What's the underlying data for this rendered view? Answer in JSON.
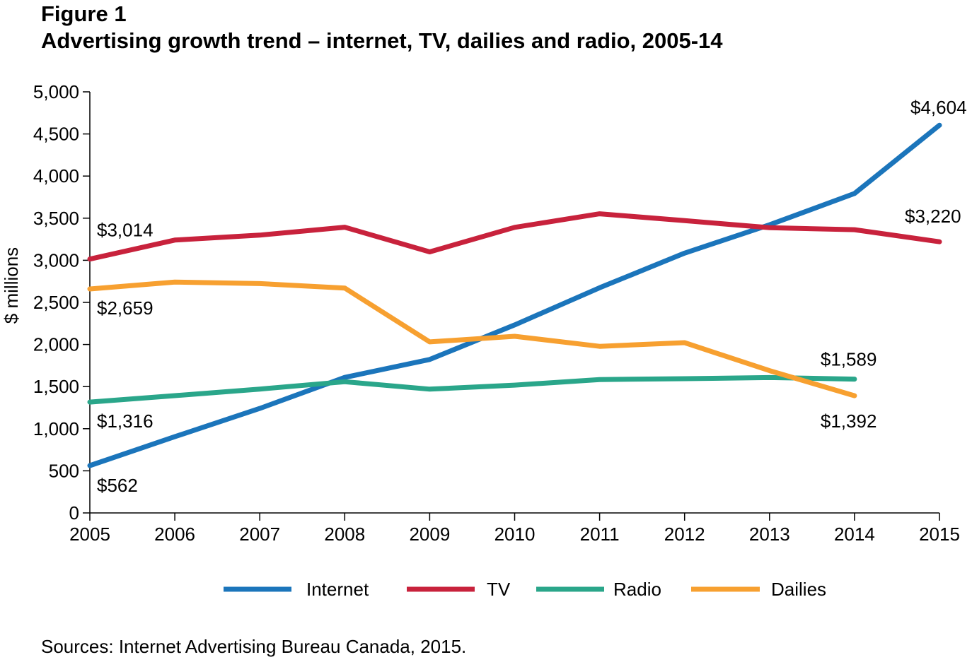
{
  "figure_label": "Figure 1",
  "title": "Advertising growth trend – internet, TV, dailies and radio, 2005-14",
  "source": "Sources: Internet Advertising Bureau Canada, 2015.",
  "chart_data": {
    "type": "line",
    "title": "Advertising growth trend – internet, TV, dailies and radio, 2005-14",
    "xlabel": "",
    "ylabel": "$ millions",
    "ylim": [
      0,
      5000
    ],
    "y_ticks": [
      0,
      500,
      1000,
      1500,
      2000,
      2500,
      3000,
      3500,
      4000,
      4500,
      5000
    ],
    "y_tick_labels": [
      "0",
      "500",
      "1,000",
      "1,500",
      "2,000",
      "2,500",
      "3,000",
      "3,500",
      "4,000",
      "4,500",
      "5,000"
    ],
    "categories": [
      "2005",
      "2006",
      "2007",
      "2008",
      "2009",
      "2010",
      "2011",
      "2012",
      "2013",
      "2014",
      "2015"
    ],
    "grid": false,
    "legend_position": "bottom",
    "series": [
      {
        "name": "Internet",
        "color": "#1b75bb",
        "values": [
          562,
          905,
          1241,
          1609,
          1822,
          2232,
          2674,
          3085,
          3421,
          3793,
          4604
        ]
      },
      {
        "name": "TV",
        "color": "#c8223c",
        "values": [
          3014,
          3240,
          3299,
          3393,
          3100,
          3391,
          3552,
          3471,
          3387,
          3363,
          3220
        ]
      },
      {
        "name": "Radio",
        "color": "#2aa68a",
        "values": [
          1316,
          1393,
          1471,
          1558,
          1470,
          1518,
          1584,
          1594,
          1607,
          1589,
          null
        ]
      },
      {
        "name": "Dailies",
        "color": "#f7a030",
        "values": [
          2659,
          2742,
          2723,
          2670,
          2031,
          2097,
          1978,
          2022,
          1690,
          1392,
          null
        ]
      }
    ],
    "annotations": [
      {
        "text": "$562",
        "series": "Internet",
        "x": "2005"
      },
      {
        "text": "$4,604",
        "series": "Internet",
        "x": "2015"
      },
      {
        "text": "$3,014",
        "series": "TV",
        "x": "2005"
      },
      {
        "text": "$3,220",
        "series": "TV",
        "x": "2015"
      },
      {
        "text": "$1,316",
        "series": "Radio",
        "x": "2005"
      },
      {
        "text": "$1,589",
        "series": "Radio",
        "x": "2014"
      },
      {
        "text": "$2,659",
        "series": "Dailies",
        "x": "2005"
      },
      {
        "text": "$1,392",
        "series": "Dailies",
        "x": "2014"
      }
    ]
  }
}
